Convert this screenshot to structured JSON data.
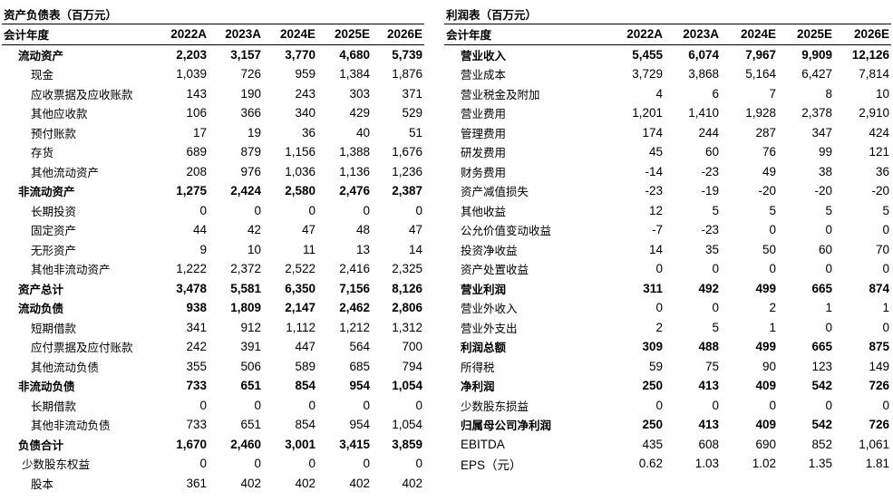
{
  "balance_sheet": {
    "title": "资产负债表（百万元）",
    "header_label": "会计年度",
    "years": [
      "2022A",
      "2023A",
      "2024E",
      "2025E",
      "2026E"
    ],
    "rows": [
      {
        "label": "流动资产",
        "style": "bold",
        "values": [
          "2,203",
          "3,157",
          "3,770",
          "4,680",
          "5,739"
        ]
      },
      {
        "label": "现金",
        "style": "sub",
        "values": [
          "1,039",
          "726",
          "959",
          "1,384",
          "1,876"
        ]
      },
      {
        "label": "应收票据及应收账款",
        "style": "sub",
        "values": [
          "143",
          "190",
          "243",
          "303",
          "371"
        ]
      },
      {
        "label": "其他应收款",
        "style": "sub",
        "values": [
          "106",
          "366",
          "340",
          "429",
          "529"
        ]
      },
      {
        "label": "预付账款",
        "style": "sub",
        "values": [
          "17",
          "19",
          "36",
          "40",
          "51"
        ]
      },
      {
        "label": "存货",
        "style": "sub",
        "values": [
          "689",
          "879",
          "1,156",
          "1,388",
          "1,676"
        ]
      },
      {
        "label": "其他流动资产",
        "style": "sub",
        "values": [
          "208",
          "976",
          "1,036",
          "1,136",
          "1,236"
        ]
      },
      {
        "label": "非流动资产",
        "style": "bold",
        "values": [
          "1,275",
          "2,424",
          "2,580",
          "2,476",
          "2,387"
        ]
      },
      {
        "label": "长期投资",
        "style": "sub",
        "values": [
          "0",
          "0",
          "0",
          "0",
          "0"
        ]
      },
      {
        "label": "固定资产",
        "style": "sub",
        "values": [
          "44",
          "42",
          "47",
          "48",
          "47"
        ]
      },
      {
        "label": "无形资产",
        "style": "sub",
        "values": [
          "9",
          "10",
          "11",
          "13",
          "14"
        ]
      },
      {
        "label": "其他非流动资产",
        "style": "sub",
        "values": [
          "1,222",
          "2,372",
          "2,522",
          "2,416",
          "2,325"
        ]
      },
      {
        "label": "资产总计",
        "style": "bold",
        "values": [
          "3,478",
          "5,581",
          "6,350",
          "7,156",
          "8,126"
        ]
      },
      {
        "label": "流动负债",
        "style": "bold",
        "values": [
          "938",
          "1,809",
          "2,147",
          "2,462",
          "2,806"
        ]
      },
      {
        "label": "短期借款",
        "style": "sub",
        "values": [
          "341",
          "912",
          "1,112",
          "1,212",
          "1,312"
        ]
      },
      {
        "label": "应付票据及应付账款",
        "style": "sub",
        "values": [
          "242",
          "391",
          "447",
          "564",
          "700"
        ]
      },
      {
        "label": "其他流动负债",
        "style": "sub",
        "values": [
          "355",
          "506",
          "589",
          "685",
          "794"
        ]
      },
      {
        "label": "非流动负债",
        "style": "bold",
        "values": [
          "733",
          "651",
          "854",
          "954",
          "1,054"
        ]
      },
      {
        "label": "长期借款",
        "style": "sub",
        "values": [
          "0",
          "0",
          "0",
          "0",
          "0"
        ]
      },
      {
        "label": "其他非流动负债",
        "style": "sub",
        "values": [
          "733",
          "651",
          "854",
          "954",
          "1,054"
        ]
      },
      {
        "label": "负债合计",
        "style": "bold",
        "values": [
          "1,670",
          "2,460",
          "3,001",
          "3,415",
          "3,859"
        ]
      },
      {
        "label": "少数股东权益",
        "style": "sub-top",
        "values": [
          "0",
          "0",
          "0",
          "0",
          "0"
        ]
      },
      {
        "label": "股本",
        "style": "sub",
        "values": [
          "361",
          "402",
          "402",
          "402",
          "402"
        ]
      }
    ]
  },
  "income_statement": {
    "title": "利润表（百万元）",
    "header_label": "会计年度",
    "years": [
      "2022A",
      "2023A",
      "2024E",
      "2025E",
      "2026E"
    ],
    "rows": [
      {
        "label": "营业收入",
        "style": "bold",
        "values": [
          "5,455",
          "6,074",
          "7,967",
          "9,909",
          "12,126"
        ]
      },
      {
        "label": "营业成本",
        "style": "plain",
        "values": [
          "3,729",
          "3,868",
          "5,164",
          "6,427",
          "7,814"
        ]
      },
      {
        "label": "营业税金及附加",
        "style": "plain",
        "values": [
          "4",
          "6",
          "7",
          "8",
          "10"
        ]
      },
      {
        "label": "营业费用",
        "style": "plain",
        "values": [
          "1,201",
          "1,410",
          "1,928",
          "2,378",
          "2,910"
        ]
      },
      {
        "label": "管理费用",
        "style": "plain",
        "values": [
          "174",
          "244",
          "287",
          "347",
          "424"
        ]
      },
      {
        "label": "研发费用",
        "style": "plain",
        "values": [
          "45",
          "60",
          "76",
          "99",
          "121"
        ]
      },
      {
        "label": "财务费用",
        "style": "plain",
        "values": [
          "-14",
          "-23",
          "49",
          "38",
          "36"
        ]
      },
      {
        "label": "资产减值损失",
        "style": "plain",
        "values": [
          "-23",
          "-19",
          "-20",
          "-20",
          "-20"
        ]
      },
      {
        "label": "其他收益",
        "style": "plain",
        "values": [
          "12",
          "5",
          "5",
          "5",
          "5"
        ]
      },
      {
        "label": "公允价值变动收益",
        "style": "plain",
        "values": [
          "-7",
          "-23",
          "0",
          "0",
          "0"
        ]
      },
      {
        "label": "投资净收益",
        "style": "plain",
        "values": [
          "14",
          "35",
          "50",
          "60",
          "70"
        ]
      },
      {
        "label": "资产处置收益",
        "style": "plain",
        "values": [
          "0",
          "0",
          "0",
          "0",
          "0"
        ]
      },
      {
        "label": "营业利润",
        "style": "bold",
        "values": [
          "311",
          "492",
          "499",
          "665",
          "874"
        ]
      },
      {
        "label": "营业外收入",
        "style": "plain",
        "values": [
          "0",
          "0",
          "2",
          "1",
          "1"
        ]
      },
      {
        "label": "营业外支出",
        "style": "plain",
        "values": [
          "2",
          "5",
          "1",
          "0",
          "0"
        ]
      },
      {
        "label": "利润总额",
        "style": "bold",
        "values": [
          "309",
          "488",
          "499",
          "665",
          "875"
        ]
      },
      {
        "label": "所得税",
        "style": "plain",
        "values": [
          "59",
          "75",
          "90",
          "123",
          "149"
        ]
      },
      {
        "label": "净利润",
        "style": "bold",
        "values": [
          "250",
          "413",
          "409",
          "542",
          "726"
        ]
      },
      {
        "label": "少数股东损益",
        "style": "plain",
        "values": [
          "0",
          "0",
          "0",
          "0",
          "0"
        ]
      },
      {
        "label": "归属母公司净利润",
        "style": "bold",
        "values": [
          "250",
          "413",
          "409",
          "542",
          "726"
        ]
      },
      {
        "label": "EBITDA",
        "style": "plain",
        "values": [
          "435",
          "608",
          "690",
          "852",
          "1,061"
        ]
      },
      {
        "label": "EPS（元）",
        "style": "plain",
        "values": [
          "0.62",
          "1.03",
          "1.02",
          "1.35",
          "1.81"
        ]
      }
    ]
  }
}
